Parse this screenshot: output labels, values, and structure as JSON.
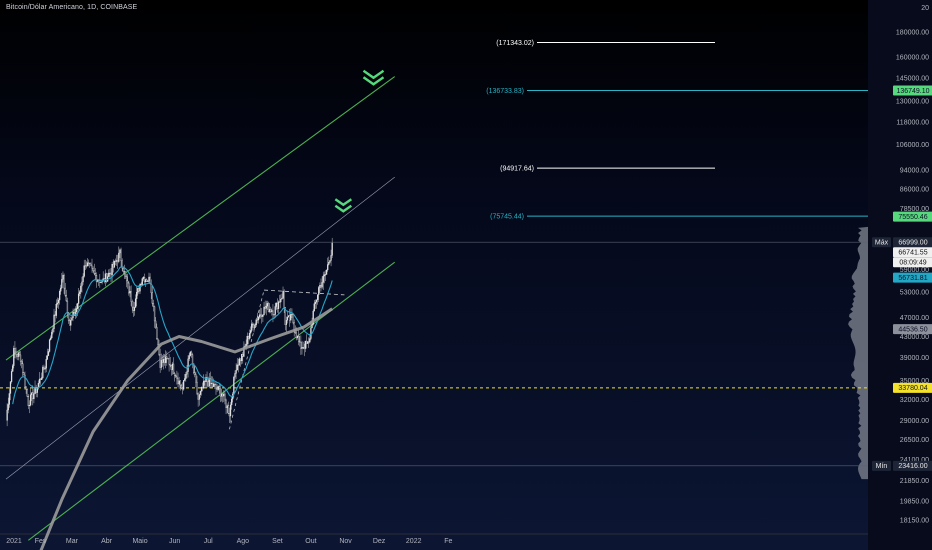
{
  "header": {
    "title": "Bitcoin/Dólar Americano, 1D, COINBASE"
  },
  "colors": {
    "up": "#e8e8e8",
    "down": "#e8e8e8",
    "ema": "#26a6c9",
    "sma": "#9b9b9b",
    "channel": "#4caf50",
    "median_line": "#9aa0b4",
    "target_cyan": "#2ab3c4",
    "target_white": "#ffffff",
    "yellow": "#f3e12a",
    "green_label": "#56d97c"
  },
  "chart_data": {
    "type": "candlestick",
    "y_scale": "log",
    "ylim": [
      17000,
      200000
    ],
    "x_axis_labels": [
      "2021",
      "Fev",
      "Mar",
      "Abr",
      "Maio",
      "Jun",
      "Jul",
      "Ago",
      "Set",
      "Out",
      "Nov",
      "Dez",
      "2022",
      "Fe"
    ],
    "y_axis_labels": [
      "20",
      "180000.00",
      "160000.00",
      "145000.00",
      "130000.00",
      "118000.00",
      "106000.00",
      "94000.00",
      "86000.00",
      "78500.00",
      "59000.00",
      "53000.00",
      "47000.00",
      "43000.00",
      "39000.00",
      "35000.00",
      "32000.00",
      "29000.00",
      "26500.00",
      "24100.00",
      "21850.00",
      "19850.00",
      "18150.00"
    ],
    "price_badges": [
      {
        "label": "136749.10",
        "style": "green",
        "value": 136749.1
      },
      {
        "label": "75550.46",
        "style": "green",
        "value": 75550.46
      },
      {
        "label": "Máx",
        "style": "max_label",
        "value": 66999
      },
      {
        "label": "66999.00",
        "style": "dark",
        "value": 66999
      },
      {
        "label": "66741.55",
        "style": "white",
        "value": 66741.55
      },
      {
        "label": "08:09:49",
        "style": "white",
        "value": 64500
      },
      {
        "label": "56731.81",
        "style": "cyan",
        "value": 56731.81
      },
      {
        "label": "44536.50",
        "style": "grey",
        "value": 44536.5
      },
      {
        "label": "33780.04",
        "style": "yellow",
        "value": 33780.04
      },
      {
        "label": "Mín",
        "style": "min_label",
        "value": 23416
      },
      {
        "label": "23416.00",
        "style": "dark",
        "value": 23416
      }
    ],
    "target_levels": [
      {
        "label": "(171343.02)",
        "value": 171343.02,
        "color": "white"
      },
      {
        "label": "(136733.83)",
        "value": 136733.83,
        "color": "cyan"
      },
      {
        "label": "(94917.64)",
        "value": 94917.64,
        "color": "white"
      },
      {
        "label": "(75745.44)",
        "value": 75745.44,
        "color": "cyan"
      }
    ],
    "horizontal_levels": [
      {
        "name": "max",
        "value": 66999
      },
      {
        "name": "min",
        "value": 23416
      },
      {
        "name": "support",
        "value": 33780
      }
    ],
    "channel_upper": [
      [
        "2021-01-01",
        38500
      ],
      [
        "2021-12-15",
        146000
      ]
    ],
    "channel_lower": [
      [
        "2021-01-21",
        16500
      ],
      [
        "2021-12-15",
        61000
      ]
    ],
    "median_line": [
      [
        "2021-01-01",
        22000
      ],
      [
        "2021-12-15",
        91000
      ]
    ],
    "resistance_dashed": [
      [
        "2021-08-20",
        53500
      ],
      [
        "2021-10-31",
        52300
      ]
    ],
    "markers": [
      {
        "type": "double-chevron",
        "date": "2021-11-26",
        "value": 150000
      },
      {
        "type": "double-chevron",
        "date": "2021-10-30",
        "value": 82000
      }
    ],
    "close_path": [
      [
        "2021-01-01",
        29000
      ],
      [
        "2021-01-08",
        40000
      ],
      [
        "2021-01-14",
        39000
      ],
      [
        "2021-01-21",
        31500
      ],
      [
        "2021-01-28",
        33500
      ],
      [
        "2021-02-05",
        37500
      ],
      [
        "2021-02-14",
        48000
      ],
      [
        "2021-02-21",
        57000
      ],
      [
        "2021-02-27",
        45500
      ],
      [
        "2021-03-05",
        49000
      ],
      [
        "2021-03-13",
        61000
      ],
      [
        "2021-03-21",
        57500
      ],
      [
        "2021-03-28",
        55500
      ],
      [
        "2021-04-05",
        58500
      ],
      [
        "2021-04-13",
        63500
      ],
      [
        "2021-04-18",
        56500
      ],
      [
        "2021-04-25",
        49500
      ],
      [
        "2021-05-03",
        57000
      ],
      [
        "2021-05-10",
        56000
      ],
      [
        "2021-05-19",
        38000
      ],
      [
        "2021-05-26",
        38500
      ],
      [
        "2021-06-01",
        36500
      ],
      [
        "2021-06-08",
        33500
      ],
      [
        "2021-06-15",
        40000
      ],
      [
        "2021-06-22",
        32000
      ],
      [
        "2021-06-29",
        35000
      ],
      [
        "2021-07-06",
        34000
      ],
      [
        "2021-07-13",
        33000
      ],
      [
        "2021-07-20",
        30000
      ],
      [
        "2021-07-26",
        37500
      ],
      [
        "2021-08-01",
        39500
      ],
      [
        "2021-08-07",
        44000
      ],
      [
        "2021-08-14",
        47000
      ],
      [
        "2021-08-22",
        49500
      ],
      [
        "2021-08-29",
        48500
      ],
      [
        "2021-09-06",
        52700
      ],
      [
        "2021-09-08",
        46000
      ],
      [
        "2021-09-14",
        47000
      ],
      [
        "2021-09-21",
        41000
      ],
      [
        "2021-09-29",
        41500
      ],
      [
        "2021-10-03",
        48000
      ],
      [
        "2021-10-08",
        54000
      ],
      [
        "2021-10-14",
        57500
      ],
      [
        "2021-10-19",
        64000
      ],
      [
        "2021-10-20",
        66741
      ]
    ]
  }
}
